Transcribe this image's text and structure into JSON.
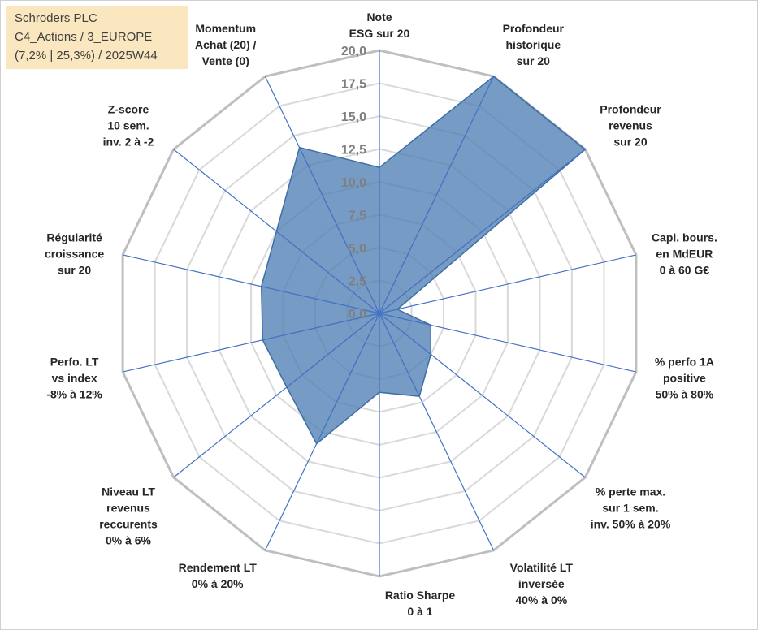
{
  "title": {
    "line1": "Schroders PLC",
    "line2": "C4_Actions / 3_EUROPE",
    "line3": "(7,2% | 25,3%) / 2025W44"
  },
  "chart_data": {
    "type": "radar",
    "rmin": 0,
    "rmax": 20,
    "ticks": [
      "0,0",
      "2,5",
      "5,0",
      "7,5",
      "10,0",
      "12,5",
      "15,0",
      "17,5",
      "20,0"
    ],
    "tick_values": [
      0,
      2.5,
      5,
      7.5,
      10,
      12.5,
      15,
      17.5,
      20
    ],
    "grid": true,
    "axes": [
      "Note\nESG sur 20",
      "Profondeur\nhistorique\nsur 20",
      "Profondeur\nrevenus\nsur 20",
      "Capi. bours.\nen MdEUR\n0 à 60 G€",
      "% perfo 1A\npositive\n50% à 80%",
      "% perte max.\nsur 1 sem.\ninv. 50% à 20%",
      "Volatilité LT\ninversée\n40% à 0%",
      "Ratio Sharpe\n0 à 1",
      "Rendement LT\n0% à 20%",
      "Niveau LT\nrevenus\nreccurents\n0% à 6%",
      "Perfo. LT\nvs index\n-8% à 12%",
      "Régularité\ncroissance\nsur 20",
      "Z-score\n10 sem.\ninv. 2 à -2",
      "Momentum\nAchat (20) /\nVente (0)"
    ],
    "series": [
      {
        "values": [
          11.1,
          20.0,
          20.0,
          1.4,
          4.0,
          5.0,
          7.0,
          6.0,
          11.0,
          9.0,
          9.1,
          9.2,
          10.0,
          14.0
        ],
        "color": "#4f7fb4"
      }
    ]
  }
}
